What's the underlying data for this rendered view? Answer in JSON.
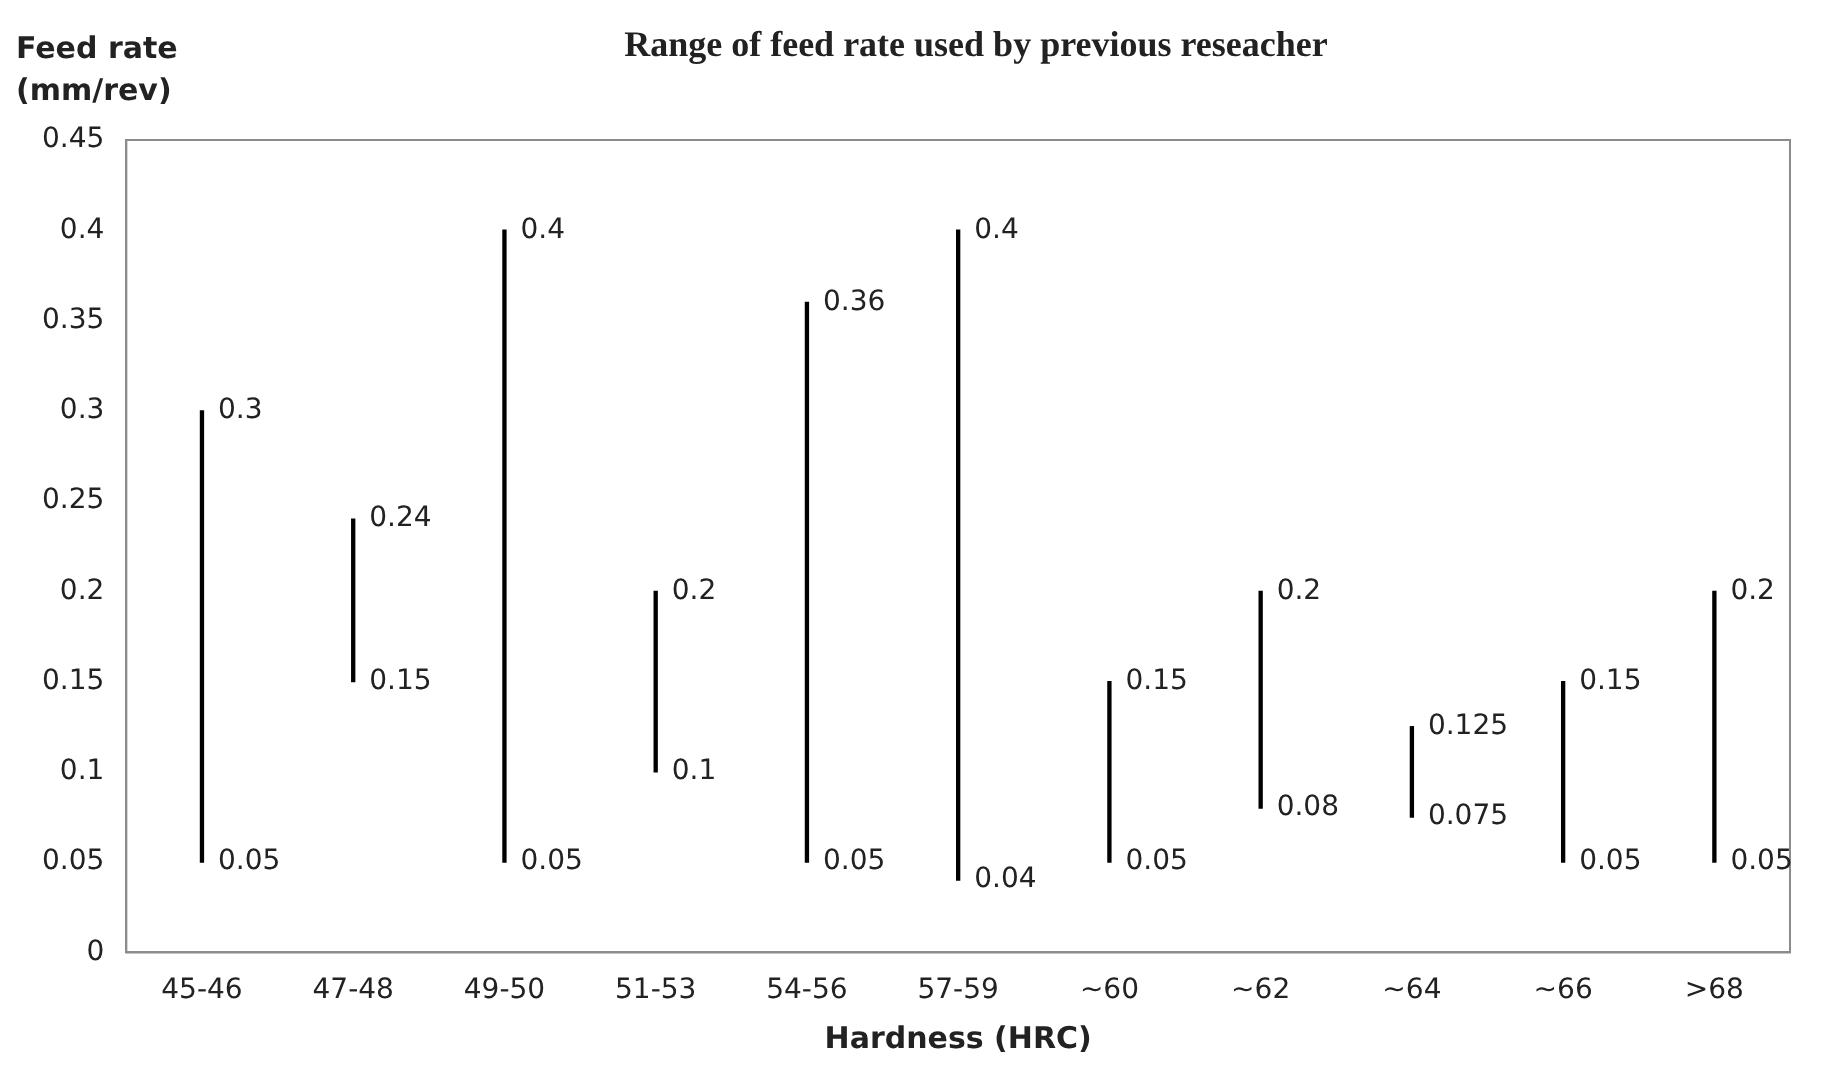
{
  "chart_data": {
    "type": "bar",
    "title": "Range of feed rate used by previous reseacher",
    "xlabel": "Hardness (HRC)",
    "ylabel": "Feed rate (mm/rev)",
    "categories": [
      "45-46",
      "47-48",
      "49-50",
      "51-53",
      "54-56",
      "57-59",
      "~60",
      "~62",
      "~64",
      "~66",
      ">68"
    ],
    "series": [
      {
        "color": "#000000",
        "base": [
          0.05,
          0.15,
          0.05,
          0.1,
          0.05,
          0.04,
          0.05,
          0.08,
          0.075,
          0.05,
          0.05
        ],
        "values": [
          0.25,
          0.09,
          0.35,
          0.1,
          0.31,
          0.36,
          0.1,
          0.12,
          0.05,
          0.1,
          0.15
        ]
      }
    ],
    "ylim": [
      0,
      0.45
    ],
    "yticks": [
      0,
      0.05,
      0.1,
      0.15,
      0.2,
      0.25,
      0.3,
      0.35,
      0.4,
      0.45
    ],
    "grid": false,
    "legend": false,
    "annotations": [
      {
        "text": "0.3",
        "x": "45-46",
        "y": 0.3
      },
      {
        "text": "0.05",
        "x": "45-46",
        "y": 0.05
      },
      {
        "text": "0.24",
        "x": "47-48",
        "y": 0.24
      },
      {
        "text": "0.15",
        "x": "47-48",
        "y": 0.15
      },
      {
        "text": "0.4",
        "x": "49-50",
        "y": 0.4
      },
      {
        "text": "0.05",
        "x": "49-50",
        "y": 0.05
      },
      {
        "text": "0.2",
        "x": "51-53",
        "y": 0.2
      },
      {
        "text": "0.1",
        "x": "51-53",
        "y": 0.1
      },
      {
        "text": "0.36",
        "x": "54-56",
        "y": 0.36
      },
      {
        "text": "0.05",
        "x": "54-56",
        "y": 0.05
      },
      {
        "text": "0.4",
        "x": "57-59",
        "y": 0.4
      },
      {
        "text": "0.04",
        "x": "57-59",
        "y": 0.04
      },
      {
        "text": "0.15",
        "x": "~60",
        "y": 0.15
      },
      {
        "text": "0.05",
        "x": "~60",
        "y": 0.05
      },
      {
        "text": "0.2",
        "x": "~62",
        "y": 0.2
      },
      {
        "text": "0.08",
        "x": "~62",
        "y": 0.08
      },
      {
        "text": "0.125",
        "x": "~64",
        "y": 0.125
      },
      {
        "text": "0.075",
        "x": "~64",
        "y": 0.075
      },
      {
        "text": "0.15",
        "x": "~66",
        "y": 0.15
      },
      {
        "text": "0.05",
        "x": "~66",
        "y": 0.05
      },
      {
        "text": "0.2",
        "x": ">68",
        "y": 0.2
      },
      {
        "text": "0.05",
        "x": ">68",
        "y": 0.05
      }
    ]
  }
}
